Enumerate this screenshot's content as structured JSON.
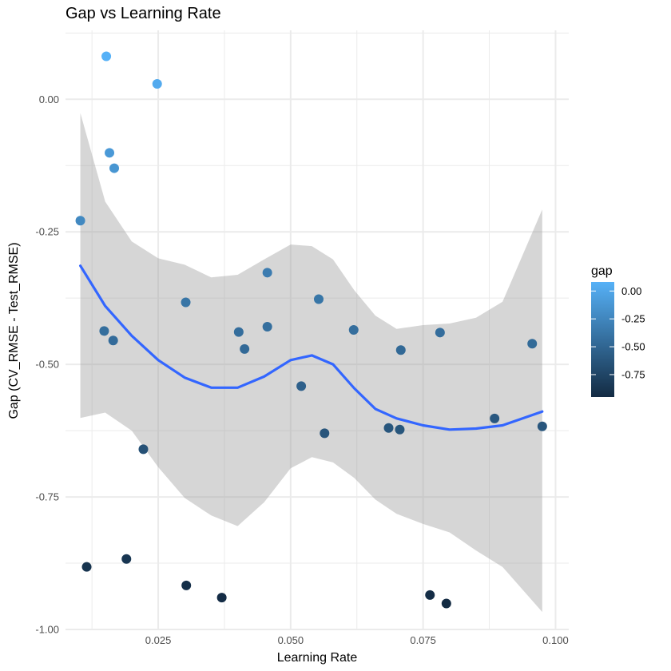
{
  "chart_data": {
    "type": "scatter",
    "title": "Gap vs Learning Rate",
    "xlabel": "Learning Rate",
    "ylabel": "Gap (CV_RMSE - Test_RMSE)",
    "xlim": [
      0.0075,
      0.1025
    ],
    "ylim": [
      -1.0,
      0.13
    ],
    "x_ticks": [
      0.025,
      0.05,
      0.075,
      0.1
    ],
    "x_tick_labels": [
      "0.025",
      "0.050",
      "0.075",
      "0.100"
    ],
    "y_ticks": [
      0.0,
      -0.25,
      -0.5,
      -0.75,
      -1.0
    ],
    "y_tick_labels": [
      "0.00",
      "-0.25",
      "-0.50",
      "-0.75",
      "-1.00"
    ],
    "grid": true,
    "points": [
      {
        "x": 0.0152,
        "y": 0.081
      },
      {
        "x": 0.0248,
        "y": 0.029
      },
      {
        "x": 0.0158,
        "y": -0.101
      },
      {
        "x": 0.0167,
        "y": -0.13
      },
      {
        "x": 0.0103,
        "y": -0.229
      },
      {
        "x": 0.0148,
        "y": -0.437
      },
      {
        "x": 0.0165,
        "y": -0.455
      },
      {
        "x": 0.0302,
        "y": -0.383
      },
      {
        "x": 0.0402,
        "y": -0.439
      },
      {
        "x": 0.0413,
        "y": -0.471
      },
      {
        "x": 0.0456,
        "y": -0.327
      },
      {
        "x": 0.0456,
        "y": -0.429
      },
      {
        "x": 0.052,
        "y": -0.541
      },
      {
        "x": 0.0553,
        "y": -0.377
      },
      {
        "x": 0.0564,
        "y": -0.63
      },
      {
        "x": 0.0619,
        "y": -0.435
      },
      {
        "x": 0.0685,
        "y": -0.62
      },
      {
        "x": 0.0706,
        "y": -0.623
      },
      {
        "x": 0.0708,
        "y": -0.473
      },
      {
        "x": 0.0782,
        "y": -0.44
      },
      {
        "x": 0.0885,
        "y": -0.602
      },
      {
        "x": 0.0956,
        "y": -0.461
      },
      {
        "x": 0.0975,
        "y": -0.617
      },
      {
        "x": 0.0222,
        "y": -0.66
      },
      {
        "x": 0.0115,
        "y": -0.882
      },
      {
        "x": 0.019,
        "y": -0.867
      },
      {
        "x": 0.0303,
        "y": -0.917
      },
      {
        "x": 0.037,
        "y": -0.94
      },
      {
        "x": 0.0763,
        "y": -0.935
      },
      {
        "x": 0.0794,
        "y": -0.951
      }
    ],
    "smooth": {
      "x": [
        0.0103,
        0.015,
        0.02,
        0.025,
        0.03,
        0.035,
        0.04,
        0.045,
        0.05,
        0.054,
        0.058,
        0.062,
        0.066,
        0.07,
        0.075,
        0.08,
        0.085,
        0.09,
        0.0975
      ],
      "y": [
        -0.314,
        -0.39,
        -0.446,
        -0.492,
        -0.525,
        -0.544,
        -0.544,
        -0.523,
        -0.492,
        -0.483,
        -0.5,
        -0.545,
        -0.584,
        -0.602,
        -0.615,
        -0.623,
        -0.621,
        -0.615,
        -0.589
      ],
      "lower": [
        -0.601,
        -0.591,
        -0.625,
        -0.694,
        -0.752,
        -0.785,
        -0.805,
        -0.76,
        -0.696,
        -0.675,
        -0.685,
        -0.714,
        -0.755,
        -0.782,
        -0.801,
        -0.817,
        -0.851,
        -0.882,
        -0.967
      ],
      "upper": [
        -0.026,
        -0.193,
        -0.268,
        -0.3,
        -0.312,
        -0.336,
        -0.331,
        -0.302,
        -0.274,
        -0.277,
        -0.302,
        -0.36,
        -0.408,
        -0.433,
        -0.426,
        -0.423,
        -0.412,
        -0.382,
        -0.208
      ]
    },
    "legend": {
      "title": "gap",
      "labels": [
        "0.00",
        "-0.25",
        "-0.50",
        "-0.75"
      ],
      "values": [
        0.0,
        -0.25,
        -0.5,
        -0.75
      ],
      "range": [
        -0.951,
        0.081
      ],
      "placement": "right"
    },
    "colors": {
      "low": "#132B43",
      "high": "#56B1F7",
      "smooth_line": "#3366FF",
      "ribbon": "#999999",
      "grid": "#ebebeb"
    }
  }
}
